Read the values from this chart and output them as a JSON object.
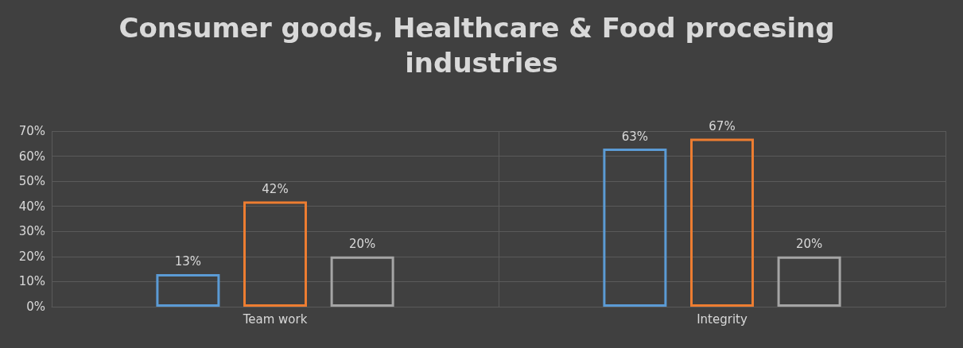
{
  "chart_data": {
    "type": "bar",
    "title": "Consumer goods, Healthcare & Food procesing industries",
    "categories": [
      "Team work",
      "Integrity"
    ],
    "series": [
      {
        "color": "#5b9bd5",
        "values": [
          13,
          63
        ],
        "value_labels": [
          "13%",
          "63%"
        ]
      },
      {
        "color": "#ed7d31",
        "values": [
          42,
          67
        ],
        "value_labels": [
          "42%",
          "67%"
        ]
      },
      {
        "color": "#a5a5a5",
        "values": [
          20,
          20
        ],
        "value_labels": [
          "20%",
          "20%"
        ]
      }
    ],
    "ylim": [
      0,
      70
    ],
    "yticks": [
      {
        "value": 0,
        "label": "0%"
      },
      {
        "value": 10,
        "label": "10%"
      },
      {
        "value": 20,
        "label": "20%"
      },
      {
        "value": 30,
        "label": "30%"
      },
      {
        "value": 40,
        "label": "40%"
      },
      {
        "value": 50,
        "label": "50%"
      },
      {
        "value": 60,
        "label": "60%"
      },
      {
        "value": 70,
        "label": "70%"
      }
    ],
    "grid": true
  }
}
